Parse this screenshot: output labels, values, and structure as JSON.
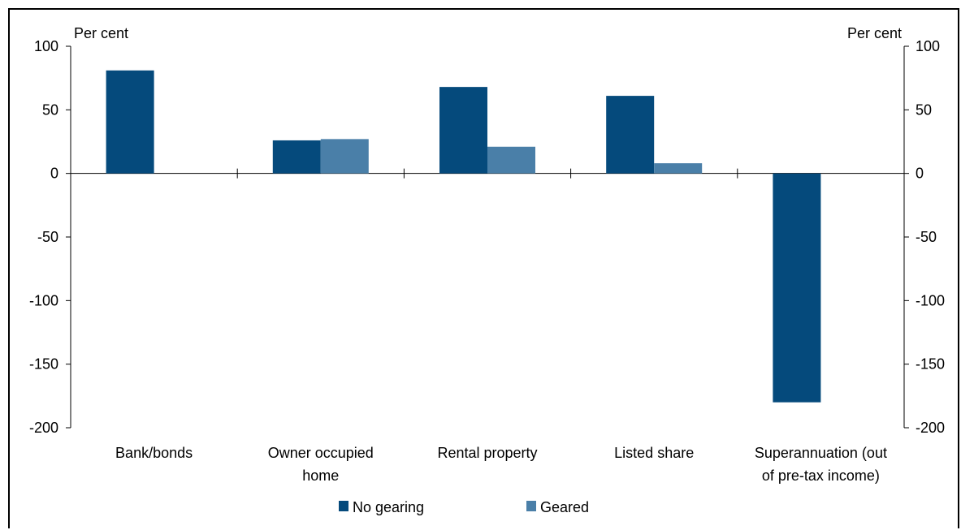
{
  "chart_data": {
    "type": "bar",
    "categories": [
      [
        "Bank/bonds"
      ],
      [
        "Owner occupied",
        "home"
      ],
      [
        "Rental property"
      ],
      [
        "Listed share"
      ],
      [
        "Superannuation (out",
        "of pre-tax income)"
      ]
    ],
    "series": [
      {
        "name": "No gearing",
        "color": "#054a7c",
        "values": [
          81,
          26,
          68,
          61,
          -180
        ]
      },
      {
        "name": "Geared",
        "color": "#4a7fa8",
        "values": [
          null,
          27,
          21,
          8,
          null
        ]
      }
    ],
    "ylim": [
      -200,
      100
    ],
    "yticks": [
      100,
      50,
      0,
      -50,
      -100,
      -150,
      -200
    ],
    "ylabel_left": "Per cent",
    "ylabel_right": "Per cent",
    "legend": "bottom",
    "grid": false
  }
}
